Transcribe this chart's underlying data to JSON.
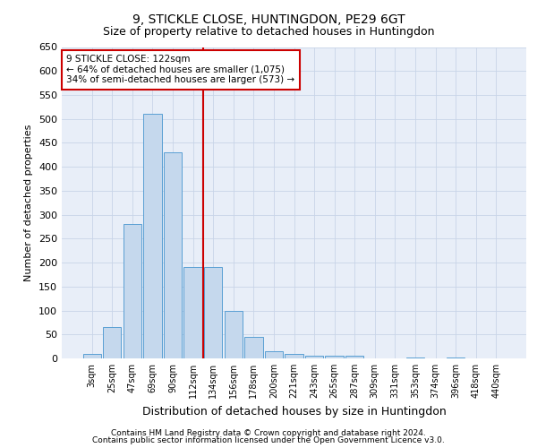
{
  "title1": "9, STICKLE CLOSE, HUNTINGDON, PE29 6GT",
  "title2": "Size of property relative to detached houses in Huntingdon",
  "xlabel": "Distribution of detached houses by size in Huntingdon",
  "ylabel": "Number of detached properties",
  "categories": [
    "3sqm",
    "25sqm",
    "47sqm",
    "69sqm",
    "90sqm",
    "112sqm",
    "134sqm",
    "156sqm",
    "178sqm",
    "200sqm",
    "221sqm",
    "243sqm",
    "265sqm",
    "287sqm",
    "309sqm",
    "331sqm",
    "353sqm",
    "374sqm",
    "396sqm",
    "418sqm",
    "440sqm"
  ],
  "bar_heights": [
    10,
    65,
    280,
    510,
    430,
    190,
    190,
    100,
    45,
    15,
    10,
    5,
    5,
    5,
    0,
    0,
    2,
    0,
    2,
    0,
    0
  ],
  "bar_color": "#c5d8ed",
  "bar_edge_color": "#5a9fd4",
  "property_line_x": 5.5,
  "property_line_color": "#cc0000",
  "annotation_text": "9 STICKLE CLOSE: 122sqm\n← 64% of detached houses are smaller (1,075)\n34% of semi-detached houses are larger (573) →",
  "annotation_box_color": "#ffffff",
  "annotation_box_edge": "#cc0000",
  "ylim": [
    0,
    650
  ],
  "yticks": [
    0,
    50,
    100,
    150,
    200,
    250,
    300,
    350,
    400,
    450,
    500,
    550,
    600,
    650
  ],
  "grid_color": "#c8d4e8",
  "bg_color": "#e8eef8",
  "footer1": "Contains HM Land Registry data © Crown copyright and database right 2024.",
  "footer2": "Contains public sector information licensed under the Open Government Licence v3.0.",
  "title1_fontsize": 10,
  "title2_fontsize": 9,
  "ylabel_fontsize": 8,
  "xlabel_fontsize": 9,
  "tick_fontsize": 8,
  "xtick_fontsize": 7,
  "footer_fontsize": 6.5,
  "annot_fontsize": 7.5
}
